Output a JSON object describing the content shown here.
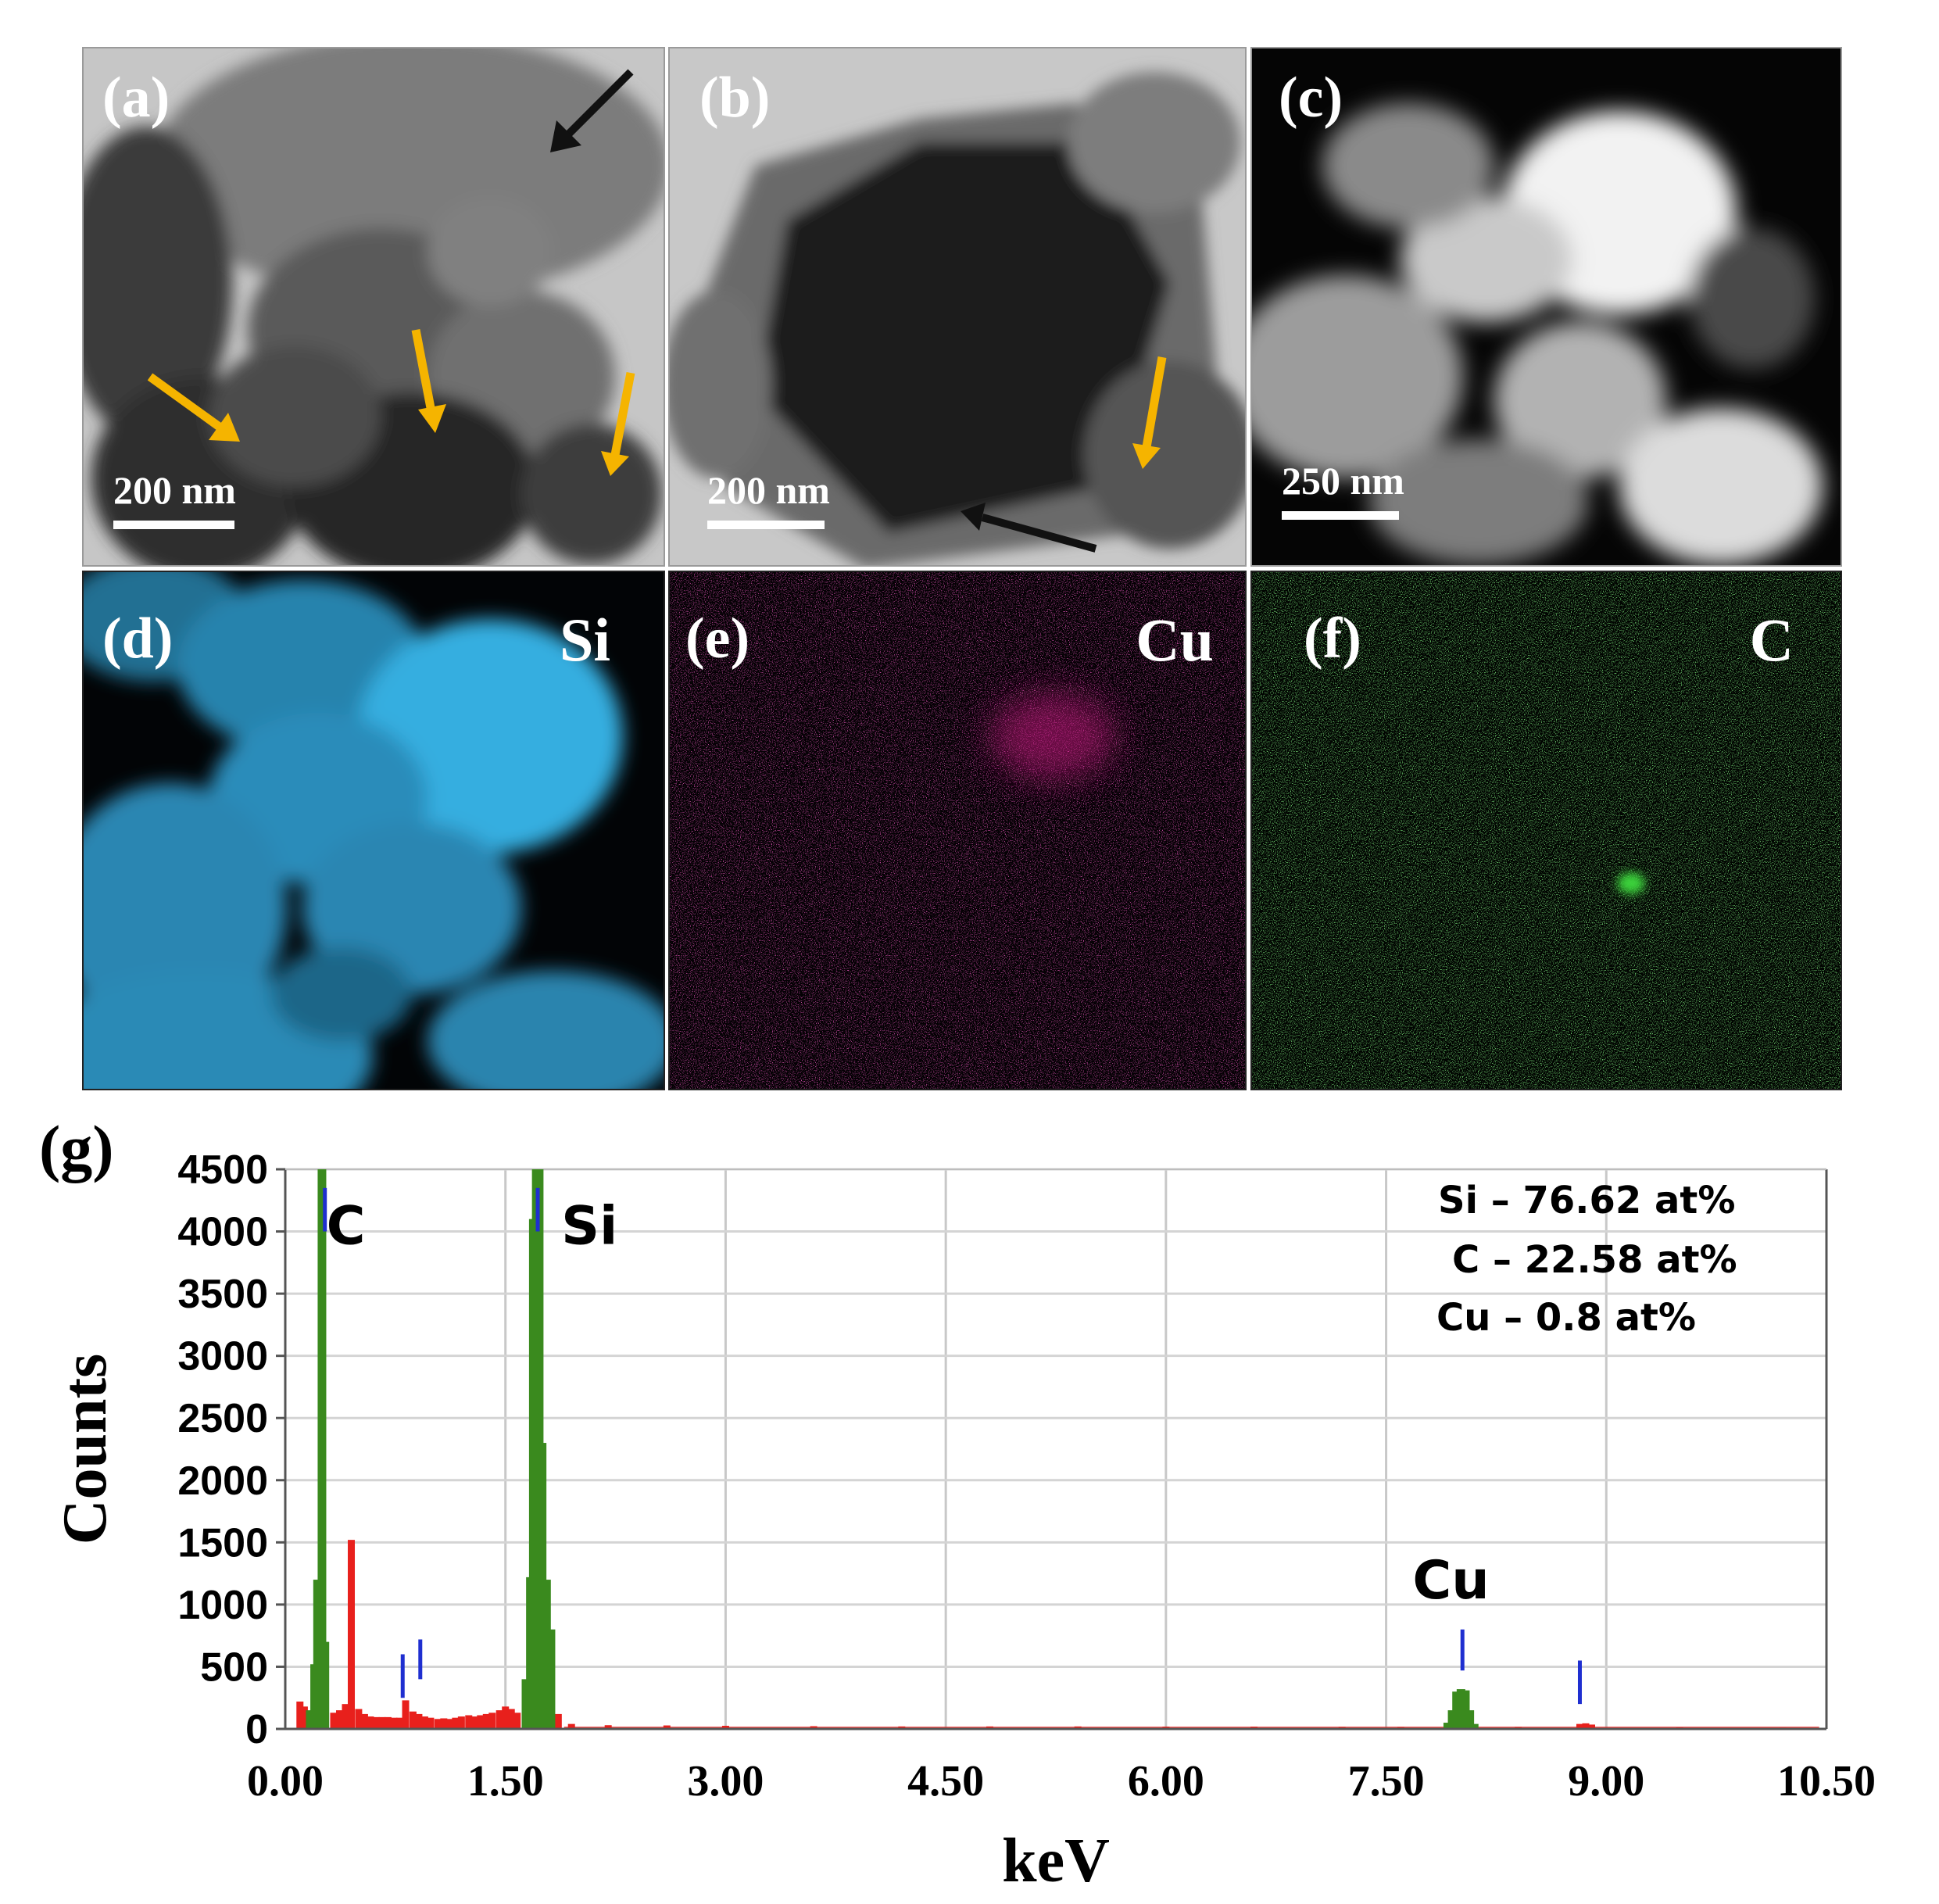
{
  "panels": {
    "a": {
      "label": "(a)",
      "scale": "200 nm"
    },
    "b": {
      "label": "(b)",
      "scale": "200 nm"
    },
    "c": {
      "label": "(c)",
      "scale": "250 nm"
    },
    "d": {
      "label": "(d)",
      "element": "Si"
    },
    "e": {
      "label": "(e)",
      "element": "Cu"
    },
    "f": {
      "label": "(f)",
      "element": "C"
    },
    "g": {
      "label": "(g)"
    }
  },
  "colors": {
    "arrow_black": "#111111",
    "arrow_orange": "#f5b400",
    "si_map": "#29a3d9",
    "cu_map": "#c0187a",
    "c_map": "#2fa52f",
    "spectrum_green": "#3a8a1e",
    "spectrum_red": "#e8201c",
    "marker_blue": "#1f2fd0"
  },
  "chart_data": {
    "type": "bar",
    "xlabel": "keV",
    "ylabel": "Counts",
    "xlim": [
      0,
      10.5
    ],
    "ylim": [
      0,
      4500
    ],
    "xticks": [
      "0.00",
      "1.50",
      "3.00",
      "4.50",
      "6.00",
      "7.50",
      "9.00",
      "10.50"
    ],
    "yticks": [
      "0",
      "500",
      "1000",
      "1500",
      "2000",
      "2500",
      "3000",
      "3500",
      "4000",
      "4500"
    ],
    "grid": true,
    "peak_labels": [
      {
        "text": "C",
        "x": 0.28,
        "y": 3900
      },
      {
        "text": "Si",
        "x": 1.88,
        "y": 3900
      },
      {
        "text": "Cu",
        "x": 7.68,
        "y": 1050
      }
    ],
    "composition": [
      "Si – 76.62 at%",
      "C – 22.58 at%",
      "Cu – 0.8 at%"
    ],
    "series": [
      {
        "x": [
          0.17,
          0.2,
          0.22,
          0.25,
          0.27,
          1.64,
          1.67,
          1.69,
          1.71,
          1.73,
          1.75,
          1.78,
          1.81,
          7.92,
          7.95,
          7.98,
          8.01,
          8.04,
          8.07,
          8.1
        ],
        "values": [
          150,
          520,
          1200,
          4500,
          700,
          400,
          1220,
          4100,
          4500,
          4500,
          2300,
          1200,
          800,
          50,
          150,
          300,
          320,
          310,
          150,
          40
        ]
      },
      {
        "x": [
          0.1,
          0.13,
          0.33,
          0.37,
          0.41,
          0.45,
          0.5,
          0.54,
          0.58,
          0.62,
          0.66,
          0.7,
          0.74,
          0.78,
          0.82,
          0.87,
          0.91,
          0.95,
          0.99,
          1.04,
          1.08,
          1.12,
          1.16,
          1.2,
          1.25,
          1.29,
          1.33,
          1.37,
          1.41,
          1.46,
          1.5,
          1.54,
          1.58,
          1.86,
          1.95,
          2.2,
          2.6,
          3.0,
          3.6,
          4.2,
          4.8,
          5.4,
          6.0,
          6.6,
          7.2,
          7.6,
          8.4,
          8.82,
          8.86,
          8.9,
          9.5,
          10.2
        ],
        "values": [
          220,
          180,
          130,
          150,
          200,
          1520,
          160,
          120,
          100,
          95,
          95,
          95,
          90,
          90,
          230,
          140,
          120,
          100,
          90,
          80,
          85,
          80,
          90,
          100,
          110,
          100,
          110,
          120,
          130,
          150,
          180,
          160,
          130,
          120,
          40,
          30,
          28,
          25,
          22,
          20,
          20,
          20,
          18,
          18,
          16,
          15,
          15,
          40,
          45,
          35,
          12,
          10
        ]
      }
    ],
    "markers": [
      {
        "x": 0.27,
        "y1": 4000,
        "y2": 4350
      },
      {
        "x": 1.72,
        "y1": 4000,
        "y2": 4350
      },
      {
        "x": 0.8,
        "y1": 250,
        "y2": 600
      },
      {
        "x": 0.92,
        "y1": 400,
        "y2": 720
      },
      {
        "x": 8.02,
        "y1": 470,
        "y2": 800
      },
      {
        "x": 8.82,
        "y1": 200,
        "y2": 550
      }
    ]
  }
}
